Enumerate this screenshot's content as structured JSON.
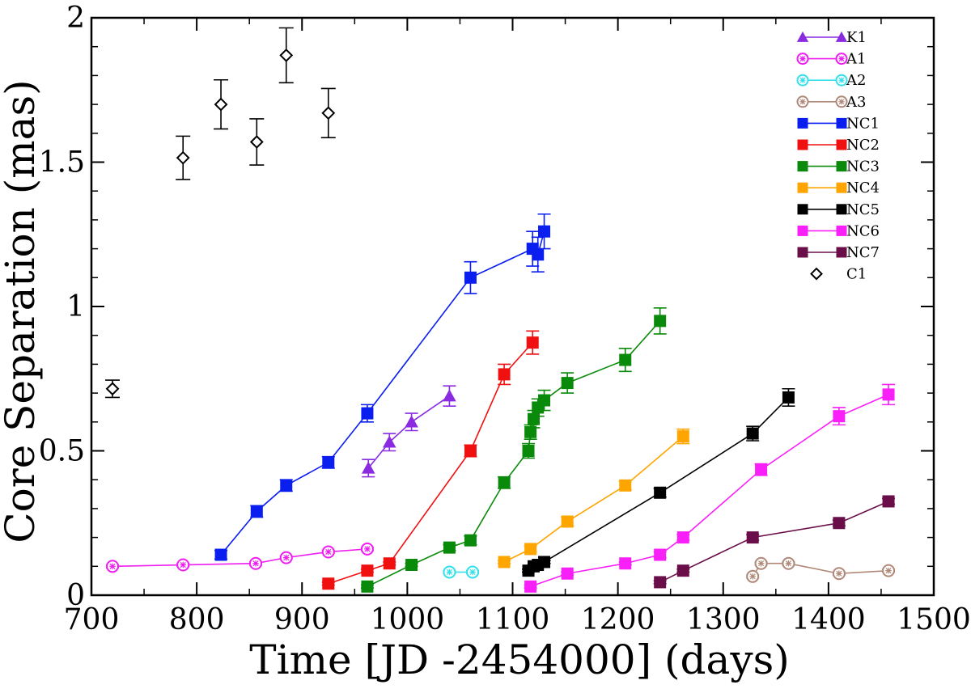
{
  "chart_data": {
    "type": "scatter",
    "title": "",
    "xlabel": "Time [JD -2454000] (days)",
    "ylabel": "Core Separation (mas)",
    "xlim": [
      700,
      1500
    ],
    "ylim": [
      0,
      2
    ],
    "x_ticks": [
      700,
      800,
      900,
      1000,
      1100,
      1200,
      1300,
      1400,
      1500
    ],
    "x_tick_labels": [
      "700",
      "800",
      "900",
      "1000",
      "1100",
      "1200",
      "1300",
      "1400",
      "1500"
    ],
    "y_ticks": [
      0,
      0.5,
      1,
      1.5,
      2
    ],
    "y_tick_labels": [
      "0",
      "0.5",
      "1",
      "1.5",
      "2"
    ],
    "legend_position": "top-right",
    "series": [
      {
        "name": "K1",
        "color": "#8a2be2",
        "marker": "triangle",
        "connected": true,
        "x": [
          963,
          983,
          1004,
          1040
        ],
        "y": [
          0.44,
          0.53,
          0.6,
          0.69
        ],
        "err": [
          0.03,
          0.03,
          0.03,
          0.035
        ]
      },
      {
        "name": "A1",
        "color": "#ee1df0",
        "marker": "hatched-circle",
        "connected": true,
        "x": [
          720,
          787,
          856,
          885,
          925,
          962
        ],
        "y": [
          0.1,
          0.105,
          0.11,
          0.13,
          0.15,
          0.16
        ],
        "err": [
          0.005,
          0.005,
          0.005,
          0.005,
          0.005,
          0.005
        ]
      },
      {
        "name": "A2",
        "color": "#33e0ec",
        "marker": "hatched-circle",
        "connected": true,
        "x": [
          1040,
          1062
        ],
        "y": [
          0.08,
          0.08
        ],
        "err": [
          0.005,
          0.005
        ]
      },
      {
        "name": "A3",
        "color": "#b08878",
        "marker": "hatched-circle",
        "connected": true,
        "x": [
          1328,
          1336,
          1362,
          1410,
          1457
        ],
        "y": [
          0.065,
          0.11,
          0.11,
          0.075,
          0.085
        ],
        "err": [
          0.005,
          0.005,
          0.005,
          0.005,
          0.005
        ]
      },
      {
        "name": "NC1",
        "color": "#0a1ef0",
        "marker": "square",
        "connected": true,
        "x": [
          823,
          857,
          885,
          925,
          962,
          1060,
          1119,
          1124,
          1130
        ],
        "y": [
          0.14,
          0.29,
          0.38,
          0.46,
          0.63,
          1.1,
          1.2,
          1.18,
          1.26
        ],
        "err": [
          0.015,
          0.02,
          0.02,
          0.02,
          0.03,
          0.055,
          0.06,
          0.06,
          0.06
        ]
      },
      {
        "name": "NC2",
        "color": "#f01010",
        "marker": "square",
        "connected": true,
        "x": [
          925,
          962,
          983,
          1060,
          1092,
          1119
        ],
        "y": [
          0.04,
          0.085,
          0.11,
          0.5,
          0.765,
          0.875
        ],
        "err": [
          0.005,
          0.005,
          0.005,
          0.02,
          0.035,
          0.04
        ]
      },
      {
        "name": "NC3",
        "color": "#0a8a0a",
        "marker": "square",
        "connected": true,
        "x": [
          962,
          1004,
          1040,
          1060,
          1092,
          1115,
          1117,
          1120,
          1124,
          1130,
          1152,
          1207,
          1240
        ],
        "y": [
          0.03,
          0.105,
          0.165,
          0.19,
          0.39,
          0.5,
          0.565,
          0.61,
          0.65,
          0.675,
          0.735,
          0.815,
          0.95
        ],
        "err": [
          0.005,
          0.005,
          0.01,
          0.015,
          0.02,
          0.025,
          0.025,
          0.03,
          0.03,
          0.035,
          0.035,
          0.04,
          0.045
        ]
      },
      {
        "name": "NC4",
        "color": "#ffa500",
        "marker": "square",
        "connected": true,
        "x": [
          1092,
          1117,
          1152,
          1207,
          1262
        ],
        "y": [
          0.115,
          0.16,
          0.255,
          0.38,
          0.55
        ],
        "err": [
          0.005,
          0.01,
          0.015,
          0.015,
          0.025
        ]
      },
      {
        "name": "NC5",
        "color": "#000000",
        "marker": "square",
        "connected": true,
        "x": [
          1115,
          1120,
          1124,
          1130,
          1240,
          1328,
          1362
        ],
        "y": [
          0.085,
          0.1,
          0.105,
          0.115,
          0.355,
          0.56,
          0.685
        ],
        "err": [
          0.005,
          0.005,
          0.005,
          0.005,
          0.015,
          0.025,
          0.03
        ]
      },
      {
        "name": "NC6",
        "color": "#f81ff8",
        "marker": "square",
        "connected": true,
        "x": [
          1117,
          1152,
          1207,
          1240,
          1262,
          1336,
          1410,
          1457
        ],
        "y": [
          0.03,
          0.075,
          0.11,
          0.14,
          0.2,
          0.435,
          0.62,
          0.695
        ],
        "err": [
          0.005,
          0.005,
          0.005,
          0.01,
          0.01,
          0.02,
          0.03,
          0.035
        ]
      },
      {
        "name": "NC7",
        "color": "#6a0e4a",
        "marker": "square",
        "connected": true,
        "x": [
          1240,
          1262,
          1328,
          1410,
          1457
        ],
        "y": [
          0.045,
          0.085,
          0.2,
          0.25,
          0.325
        ],
        "err": [
          0.005,
          0.005,
          0.01,
          0.01,
          0.01
        ]
      },
      {
        "name": "C1",
        "color": "#000000",
        "marker": "diamond",
        "connected": false,
        "x": [
          720,
          787,
          823,
          857,
          885,
          925
        ],
        "y": [
          0.715,
          1.515,
          1.7,
          1.57,
          1.87,
          1.67
        ],
        "err": [
          0.03,
          0.075,
          0.085,
          0.08,
          0.095,
          0.085
        ]
      }
    ]
  }
}
